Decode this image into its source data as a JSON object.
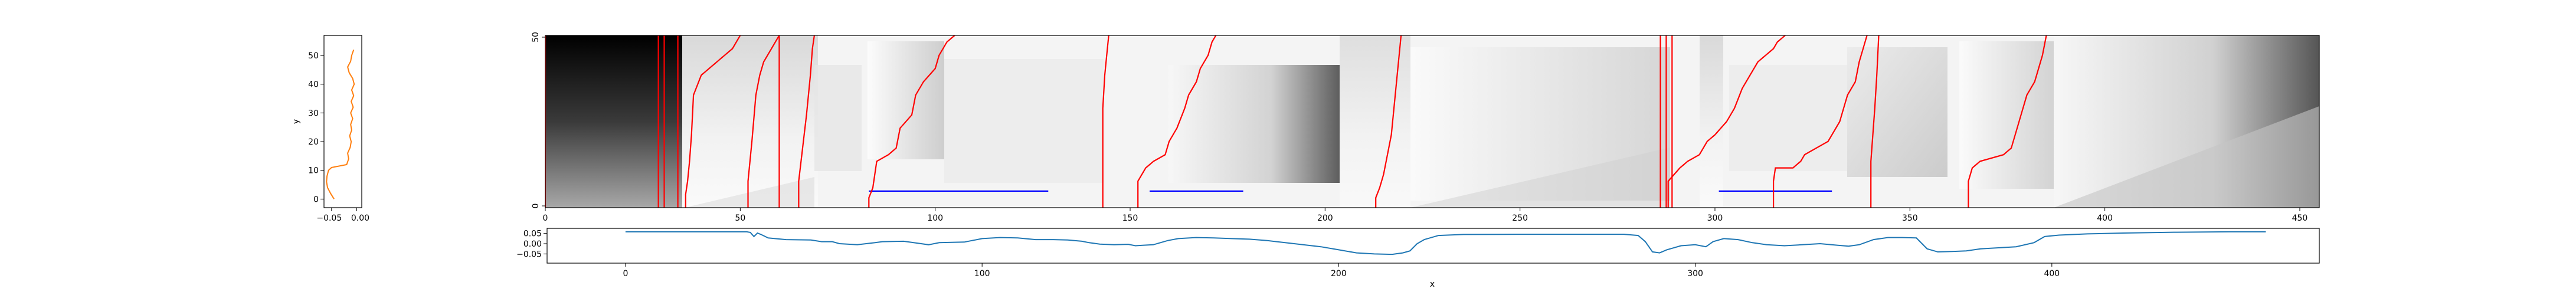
{
  "chart_data": [
    {
      "type": "line",
      "panel": "left-profile",
      "ylabel": "y",
      "xlabel": "",
      "x_ticks": [
        "−0.05",
        "0.00"
      ],
      "y_ticks": [
        0,
        10,
        20,
        30,
        40,
        50
      ],
      "xlim": [
        -0.065,
        0.01
      ],
      "ylim": [
        -3,
        57
      ],
      "color": "#ff7f0e",
      "series": [
        {
          "points": [
            [
              -0.045,
              0
            ],
            [
              -0.052,
              2
            ],
            [
              -0.058,
              4
            ],
            [
              -0.06,
              6
            ],
            [
              -0.059,
              8
            ],
            [
              -0.056,
              10
            ],
            [
              -0.05,
              11
            ],
            [
              -0.02,
              12
            ],
            [
              -0.016,
              14
            ],
            [
              -0.018,
              16
            ],
            [
              -0.013,
              18
            ],
            [
              -0.011,
              20
            ],
            [
              -0.014,
              22
            ],
            [
              -0.01,
              24
            ],
            [
              -0.012,
              26
            ],
            [
              -0.008,
              28
            ],
            [
              -0.012,
              30
            ],
            [
              -0.007,
              32
            ],
            [
              -0.011,
              34
            ],
            [
              -0.006,
              36
            ],
            [
              -0.01,
              38
            ],
            [
              -0.005,
              40
            ],
            [
              -0.008,
              42
            ],
            [
              -0.015,
              44
            ],
            [
              -0.018,
              46
            ],
            [
              -0.012,
              48
            ],
            [
              -0.01,
              50
            ],
            [
              -0.006,
              52
            ]
          ]
        }
      ]
    },
    {
      "type": "heatmap",
      "panel": "main-image",
      "colormap": "gray_r",
      "x_ticks": [
        0,
        50,
        100,
        150,
        200,
        250,
        300,
        350,
        400,
        450
      ],
      "y_ticks": [
        0,
        50
      ],
      "xlim": [
        0,
        455
      ],
      "ylim": [
        0,
        52
      ],
      "red_lines_color": "#ff0000",
      "blue_lines_color": "#0000ff",
      "red_lines": [
        [
          [
            0,
            0
          ],
          [
            0,
            52
          ]
        ],
        [
          [
            29,
            0
          ],
          [
            29,
            52
          ]
        ],
        [
          [
            30.5,
            0
          ],
          [
            30.5,
            52
          ]
        ],
        [
          [
            34,
            0
          ],
          [
            34,
            52
          ]
        ],
        [
          [
            36,
            0
          ],
          [
            36,
            4
          ],
          [
            36.5,
            8
          ],
          [
            37,
            14
          ],
          [
            37.5,
            22
          ],
          [
            38,
            34
          ],
          [
            40,
            40
          ],
          [
            44,
            44
          ],
          [
            46,
            46
          ],
          [
            48,
            48
          ],
          [
            49,
            50
          ],
          [
            50,
            52
          ]
        ],
        [
          [
            52,
            0
          ],
          [
            52,
            8
          ],
          [
            53,
            20
          ],
          [
            54,
            34
          ],
          [
            55,
            40
          ],
          [
            56,
            44
          ],
          [
            58,
            48
          ],
          [
            60,
            52
          ]
        ],
        [
          [
            60,
            0
          ],
          [
            60,
            52
          ]
        ],
        [
          [
            65,
            0
          ],
          [
            65,
            8
          ],
          [
            66,
            18
          ],
          [
            67,
            28
          ],
          [
            68,
            40
          ],
          [
            68.5,
            48
          ],
          [
            69,
            52
          ]
        ],
        [
          [
            83,
            0
          ],
          [
            83,
            3
          ],
          [
            84,
            6
          ],
          [
            84.5,
            10
          ],
          [
            85,
            14
          ],
          [
            88,
            16
          ],
          [
            90,
            18
          ],
          [
            91,
            24
          ],
          [
            94,
            28
          ],
          [
            95,
            34
          ],
          [
            97,
            38
          ],
          [
            100,
            42
          ],
          [
            101,
            46
          ],
          [
            102,
            48
          ],
          [
            103,
            50
          ],
          [
            105,
            52
          ]
        ],
        [
          [
            143,
            0
          ],
          [
            143,
            30
          ],
          [
            143.5,
            40
          ],
          [
            144,
            46
          ],
          [
            144.5,
            52
          ]
        ],
        [
          [
            152,
            0
          ],
          [
            152,
            8
          ],
          [
            154,
            12
          ],
          [
            156,
            14
          ],
          [
            159,
            16
          ],
          [
            160,
            20
          ],
          [
            162,
            24
          ],
          [
            164,
            30
          ],
          [
            165,
            34
          ],
          [
            167,
            38
          ],
          [
            168,
            42
          ],
          [
            170,
            46
          ],
          [
            171,
            50
          ],
          [
            172,
            52
          ]
        ],
        [
          [
            213,
            0
          ],
          [
            213,
            3
          ],
          [
            214,
            6
          ],
          [
            215,
            10
          ],
          [
            216,
            16
          ],
          [
            217,
            22
          ],
          [
            217.5,
            28
          ],
          [
            218,
            34
          ],
          [
            218.5,
            40
          ],
          [
            219,
            46
          ],
          [
            219.5,
            52
          ]
        ],
        [
          [
            286,
            0
          ],
          [
            286,
            52
          ]
        ],
        [
          [
            287.5,
            0
          ],
          [
            287.5,
            52
          ]
        ],
        [
          [
            289,
            0
          ],
          [
            289,
            52
          ]
        ],
        [
          [
            288,
            0
          ],
          [
            288,
            8
          ],
          [
            291,
            12
          ],
          [
            293,
            14
          ],
          [
            296,
            16
          ],
          [
            298,
            20
          ],
          [
            300,
            22
          ],
          [
            303,
            26
          ],
          [
            305,
            30
          ],
          [
            307,
            36
          ],
          [
            309,
            40
          ],
          [
            311,
            44
          ],
          [
            313,
            46
          ],
          [
            315,
            48
          ],
          [
            316,
            50
          ],
          [
            318,
            52
          ]
        ],
        [
          [
            315,
            0
          ],
          [
            315,
            8
          ],
          [
            315.5,
            12
          ],
          [
            320,
            12
          ],
          [
            322,
            14
          ],
          [
            323,
            16
          ],
          [
            326,
            18
          ],
          [
            329,
            20
          ],
          [
            330,
            22
          ],
          [
            332,
            26
          ],
          [
            333,
            30
          ],
          [
            334,
            34
          ],
          [
            336,
            38
          ],
          [
            337,
            44
          ],
          [
            338,
            48
          ],
          [
            339,
            52
          ]
        ],
        [
          [
            340,
            0
          ],
          [
            340,
            14
          ],
          [
            341,
            30
          ],
          [
            341.5,
            40
          ],
          [
            342,
            52
          ]
        ],
        [
          [
            365,
            0
          ],
          [
            365,
            8
          ],
          [
            366,
            12
          ],
          [
            368,
            14
          ],
          [
            374,
            16
          ],
          [
            376,
            18
          ],
          [
            377,
            22
          ],
          [
            378,
            26
          ],
          [
            379,
            30
          ],
          [
            380,
            34
          ],
          [
            382,
            38
          ],
          [
            383,
            42
          ],
          [
            384,
            46
          ],
          [
            385,
            52
          ]
        ]
      ],
      "blue_lines": [
        [
          [
            83,
            5
          ],
          [
            129,
            5
          ]
        ],
        [
          [
            155,
            5
          ],
          [
            179,
            5
          ]
        ],
        [
          [
            301,
            5
          ],
          [
            330,
            5
          ]
        ]
      ]
    },
    {
      "type": "line",
      "panel": "bottom-profile",
      "xlabel": "x",
      "ylabel": "",
      "x_ticks": [
        0,
        100,
        200,
        300,
        400
      ],
      "y_ticks": [
        "0.05",
        "0.00",
        "−0.05"
      ],
      "xlim": [
        -22,
        475
      ],
      "ylim": [
        -0.095,
        0.075
      ],
      "color": "#1f77b4",
      "series": [
        {
          "points": [
            [
              0,
              0.058
            ],
            [
              30,
              0.058
            ],
            [
              34,
              0.058
            ],
            [
              35,
              0.055
            ],
            [
              36,
              0.035
            ],
            [
              37,
              0.052
            ],
            [
              38,
              0.045
            ],
            [
              40,
              0.028
            ],
            [
              45,
              0.02
            ],
            [
              52,
              0.018
            ],
            [
              55,
              0.01
            ],
            [
              58,
              0.01
            ],
            [
              60,
              0.0
            ],
            [
              65,
              -0.005
            ],
            [
              70,
              0.005
            ],
            [
              72,
              0.01
            ],
            [
              78,
              0.012
            ],
            [
              82,
              0.002
            ],
            [
              85,
              -0.005
            ],
            [
              88,
              0.005
            ],
            [
              95,
              0.008
            ],
            [
              100,
              0.025
            ],
            [
              105,
              0.03
            ],
            [
              110,
              0.028
            ],
            [
              115,
              0.02
            ],
            [
              120,
              0.02
            ],
            [
              124,
              0.018
            ],
            [
              128,
              0.012
            ],
            [
              130,
              0.005
            ],
            [
              133,
              -0.002
            ],
            [
              137,
              -0.005
            ],
            [
              141,
              -0.003
            ],
            [
              143,
              -0.01
            ],
            [
              145,
              -0.008
            ],
            [
              148,
              -0.005
            ],
            [
              150,
              0.005
            ],
            [
              152,
              0.015
            ],
            [
              155,
              0.025
            ],
            [
              160,
              0.03
            ],
            [
              165,
              0.028
            ],
            [
              170,
              0.025
            ],
            [
              175,
              0.022
            ],
            [
              180,
              0.015
            ],
            [
              185,
              0.005
            ],
            [
              190,
              -0.005
            ],
            [
              195,
              -0.015
            ],
            [
              200,
              -0.03
            ],
            [
              205,
              -0.045
            ],
            [
              210,
              -0.05
            ],
            [
              215,
              -0.052
            ],
            [
              218,
              -0.045
            ],
            [
              220,
              -0.035
            ],
            [
              222,
              0.0
            ],
            [
              224,
              0.02
            ],
            [
              228,
              0.04
            ],
            [
              235,
              0.045
            ],
            [
              250,
              0.046
            ],
            [
              270,
              0.046
            ],
            [
              280,
              0.046
            ],
            [
              284,
              0.04
            ],
            [
              286,
              0.01
            ],
            [
              288,
              -0.04
            ],
            [
              290,
              -0.045
            ],
            [
              292,
              -0.03
            ],
            [
              296,
              -0.01
            ],
            [
              300,
              -0.005
            ],
            [
              303,
              -0.015
            ],
            [
              305,
              0.01
            ],
            [
              308,
              0.025
            ],
            [
              312,
              0.02
            ],
            [
              316,
              0.005
            ],
            [
              320,
              -0.005
            ],
            [
              325,
              -0.01
            ],
            [
              330,
              -0.005
            ],
            [
              335,
              0.0
            ],
            [
              340,
              -0.008
            ],
            [
              343,
              -0.012
            ],
            [
              346,
              -0.005
            ],
            [
              350,
              0.02
            ],
            [
              354,
              0.03
            ],
            [
              358,
              0.03
            ],
            [
              362,
              0.028
            ],
            [
              365,
              -0.025
            ],
            [
              368,
              -0.04
            ],
            [
              372,
              -0.038
            ],
            [
              376,
              -0.035
            ],
            [
              380,
              -0.025
            ],
            [
              385,
              -0.02
            ],
            [
              390,
              -0.015
            ],
            [
              395,
              0.005
            ],
            [
              398,
              0.035
            ],
            [
              402,
              0.042
            ],
            [
              410,
              0.048
            ],
            [
              420,
              0.052
            ],
            [
              435,
              0.056
            ],
            [
              450,
              0.058
            ],
            [
              460,
              0.058
            ]
          ]
        }
      ]
    }
  ]
}
